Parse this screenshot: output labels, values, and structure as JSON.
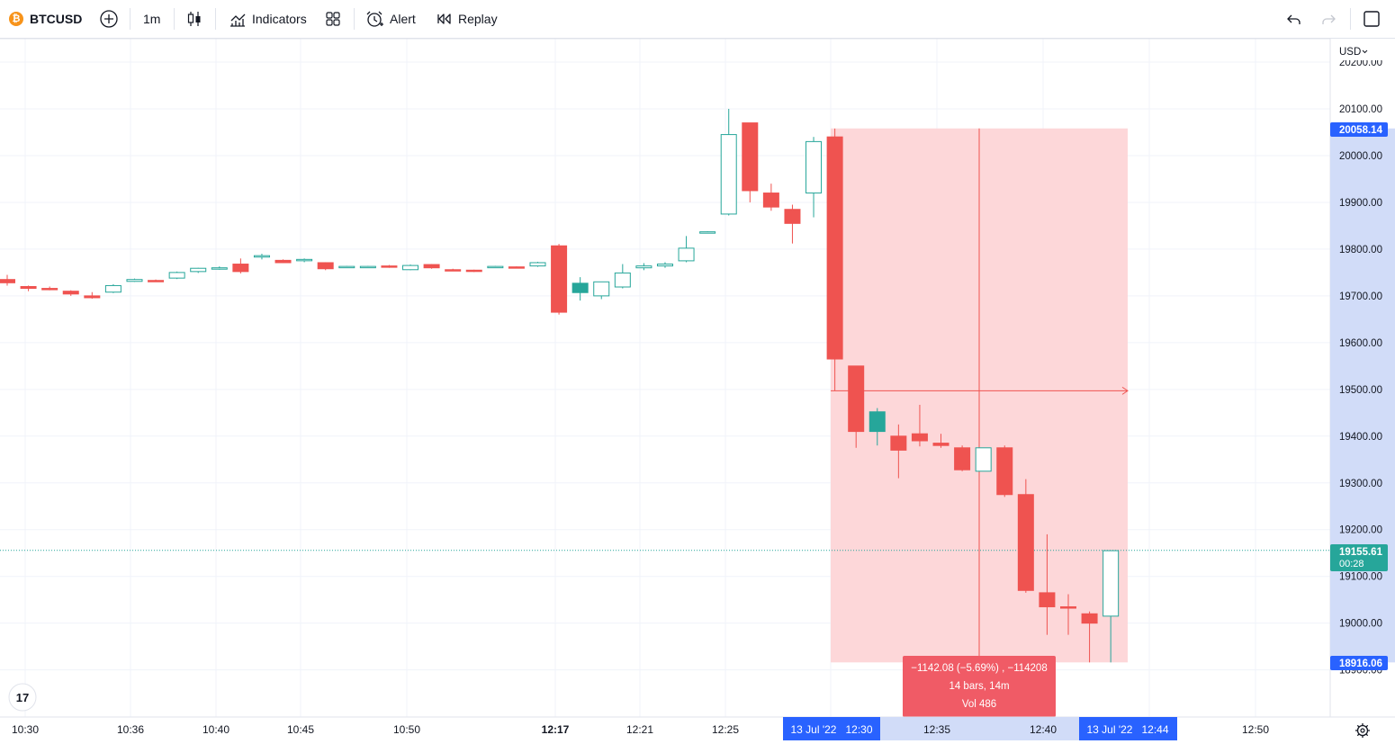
{
  "toolbar": {
    "symbol": "BTCUSD",
    "symbol_icon": "bitcoin-icon",
    "interval": "1m",
    "indicators_label": "Indicators",
    "alert_label": "Alert",
    "replay_label": "Replay"
  },
  "price_axis": {
    "currency": "USD",
    "ticks": [
      "20200.00",
      "20100.00",
      "20000.00",
      "19900.00",
      "19800.00",
      "19700.00",
      "19600.00",
      "19500.00",
      "19400.00",
      "19300.00",
      "19200.00",
      "19100.00",
      "19000.00",
      "18900.00"
    ],
    "label_high": "20058.14",
    "label_last": "19155.61",
    "countdown": "00:28",
    "label_low": "18916.06"
  },
  "time_axis": {
    "ticks": [
      "10:30",
      "10:36",
      "10:40",
      "10:45",
      "10:50",
      "12:17",
      "12:21",
      "12:25",
      "12:35",
      "12:40",
      "12:50"
    ],
    "start_label": "13 Jul '22   12:30",
    "end_label": "13 Jul '22   12:44"
  },
  "measure_tooltip": {
    "line1": "−1142.08 (−5.69%) , −114208",
    "line2": "14 bars, 14m",
    "line3": "Vol 486"
  },
  "colors": {
    "up": "#26a69a",
    "down": "#ef5350",
    "measure_fill": "#fdd7d9",
    "accent": "#2962ff",
    "axis_highlight": "#d1dcf8"
  },
  "chart_data": {
    "type": "candlestick",
    "symbol": "BTCUSD",
    "interval": "1m",
    "y_range": [
      18850,
      20200
    ],
    "candles": [
      {
        "t": "c0",
        "o": 19735,
        "h": 19745,
        "l": 19722,
        "c": 19728
      },
      {
        "t": "c1",
        "o": 19720,
        "h": 19722,
        "l": 19710,
        "c": 19716
      },
      {
        "t": "c2",
        "o": 19716,
        "h": 19720,
        "l": 19712,
        "c": 19714
      },
      {
        "t": "c3",
        "o": 19710,
        "h": 19712,
        "l": 19700,
        "c": 19704
      },
      {
        "t": "c4",
        "o": 19700,
        "h": 19708,
        "l": 19694,
        "c": 19696
      },
      {
        "t": "c5",
        "o": 19708,
        "h": 19725,
        "l": 19706,
        "c": 19722
      },
      {
        "t": "c6",
        "o": 19731,
        "h": 19737,
        "l": 19730,
        "c": 19735
      },
      {
        "t": "c7",
        "o": 19733,
        "h": 19735,
        "l": 19731,
        "c": 19732
      },
      {
        "t": "c8",
        "o": 19738,
        "h": 19752,
        "l": 19736,
        "c": 19750
      },
      {
        "t": "c9",
        "o": 19752,
        "h": 19760,
        "l": 19749,
        "c": 19759
      },
      {
        "t": "c10",
        "o": 19758,
        "h": 19763,
        "l": 19756,
        "c": 19760
      },
      {
        "t": "c11",
        "o": 19768,
        "h": 19780,
        "l": 19748,
        "c": 19752
      },
      {
        "t": "c12",
        "o": 19783,
        "h": 19790,
        "l": 19778,
        "c": 19786
      },
      {
        "t": "c13",
        "o": 19776,
        "h": 19778,
        "l": 19770,
        "c": 19771
      },
      {
        "t": "c14",
        "o": 19776,
        "h": 19780,
        "l": 19772,
        "c": 19778
      },
      {
        "t": "c15",
        "o": 19771,
        "h": 19772,
        "l": 19755,
        "c": 19758
      },
      {
        "t": "c16",
        "o": 19762,
        "h": 19764,
        "l": 19760,
        "c": 19763
      },
      {
        "t": "c17",
        "o": 19762,
        "h": 19764,
        "l": 19760,
        "c": 19763
      },
      {
        "t": "c18",
        "o": 19764,
        "h": 19766,
        "l": 19760,
        "c": 19762
      },
      {
        "t": "c19",
        "o": 19756,
        "h": 19767,
        "l": 19755,
        "c": 19765
      },
      {
        "t": "c20",
        "o": 19767,
        "h": 19768,
        "l": 19758,
        "c": 19760
      },
      {
        "t": "c21",
        "o": 19756,
        "h": 19758,
        "l": 19754,
        "c": 19755
      },
      {
        "t": "c22",
        "o": 19755,
        "h": 19756,
        "l": 19751,
        "c": 19753
      },
      {
        "t": "c23",
        "o": 19762,
        "h": 19764,
        "l": 19760,
        "c": 19763
      },
      {
        "t": "c24",
        "o": 19762,
        "h": 19763,
        "l": 19760,
        "c": 19761
      },
      {
        "t": "c25",
        "o": 19764,
        "h": 19773,
        "l": 19762,
        "c": 19771
      },
      {
        "t": "12:17",
        "o": 19807,
        "h": 19811,
        "l": 19660,
        "c": 19665
      },
      {
        "t": "12:18",
        "o": 19707,
        "h": 19740,
        "l": 19690,
        "c": 19727
      },
      {
        "t": "12:19",
        "o": 19700,
        "h": 19727,
        "l": 19693,
        "c": 19730
      },
      {
        "t": "12:20",
        "o": 19719,
        "h": 19768,
        "l": 19716,
        "c": 19749
      },
      {
        "t": "12:21",
        "o": 19760,
        "h": 19770,
        "l": 19755,
        "c": 19764
      },
      {
        "t": "12:22",
        "o": 19764,
        "h": 19772,
        "l": 19760,
        "c": 19768
      },
      {
        "t": "12:23",
        "o": 19775,
        "h": 19828,
        "l": 19772,
        "c": 19802
      },
      {
        "t": "12:24",
        "o": 19836,
        "h": 19838,
        "l": 19835,
        "c": 19837
      },
      {
        "t": "12:25",
        "o": 19875,
        "h": 20100,
        "l": 19872,
        "c": 20045
      },
      {
        "t": "12:26",
        "o": 20070,
        "h": 20070,
        "l": 19900,
        "c": 19925
      },
      {
        "t": "12:27",
        "o": 19920,
        "h": 19940,
        "l": 19882,
        "c": 19890
      },
      {
        "t": "12:28",
        "o": 19885,
        "h": 19895,
        "l": 19812,
        "c": 19855
      },
      {
        "t": "12:29",
        "o": 19920,
        "h": 20040,
        "l": 19868,
        "c": 20030
      },
      {
        "t": "12:30",
        "o": 20040,
        "h": 20058,
        "l": 19497,
        "c": 19565
      },
      {
        "t": "12:31",
        "o": 19550,
        "h": 19550,
        "l": 19375,
        "c": 19410
      },
      {
        "t": "12:32",
        "o": 19410,
        "h": 19460,
        "l": 19380,
        "c": 19452
      },
      {
        "t": "12:33",
        "o": 19400,
        "h": 19425,
        "l": 19310,
        "c": 19370
      },
      {
        "t": "12:34",
        "o": 19405,
        "h": 19467,
        "l": 19378,
        "c": 19390
      },
      {
        "t": "12:35",
        "o": 19385,
        "h": 19405,
        "l": 19375,
        "c": 19380
      },
      {
        "t": "12:36",
        "o": 19375,
        "h": 19380,
        "l": 19325,
        "c": 19328
      },
      {
        "t": "12:37",
        "o": 19325,
        "h": 19375,
        "l": 19325,
        "c": 19375
      },
      {
        "t": "12:38",
        "o": 19375,
        "h": 19380,
        "l": 19270,
        "c": 19275
      },
      {
        "t": "12:39",
        "o": 19275,
        "h": 19308,
        "l": 19065,
        "c": 19070
      },
      {
        "t": "12:40",
        "o": 19065,
        "h": 19190,
        "l": 18975,
        "c": 19035
      },
      {
        "t": "12:41",
        "o": 19035,
        "h": 19062,
        "l": 18975,
        "c": 19032
      },
      {
        "t": "12:42",
        "o": 19020,
        "h": 19025,
        "l": 18916,
        "c": 19000
      },
      {
        "t": "12:43",
        "o": 19015,
        "h": 19155,
        "l": 18916,
        "c": 19155
      }
    ],
    "last_price": 19155.61,
    "measure": {
      "from_price": 20058.14,
      "to_price": 18916.06,
      "change": -1142.08,
      "change_pct": -5.69,
      "bars": 14
    }
  }
}
